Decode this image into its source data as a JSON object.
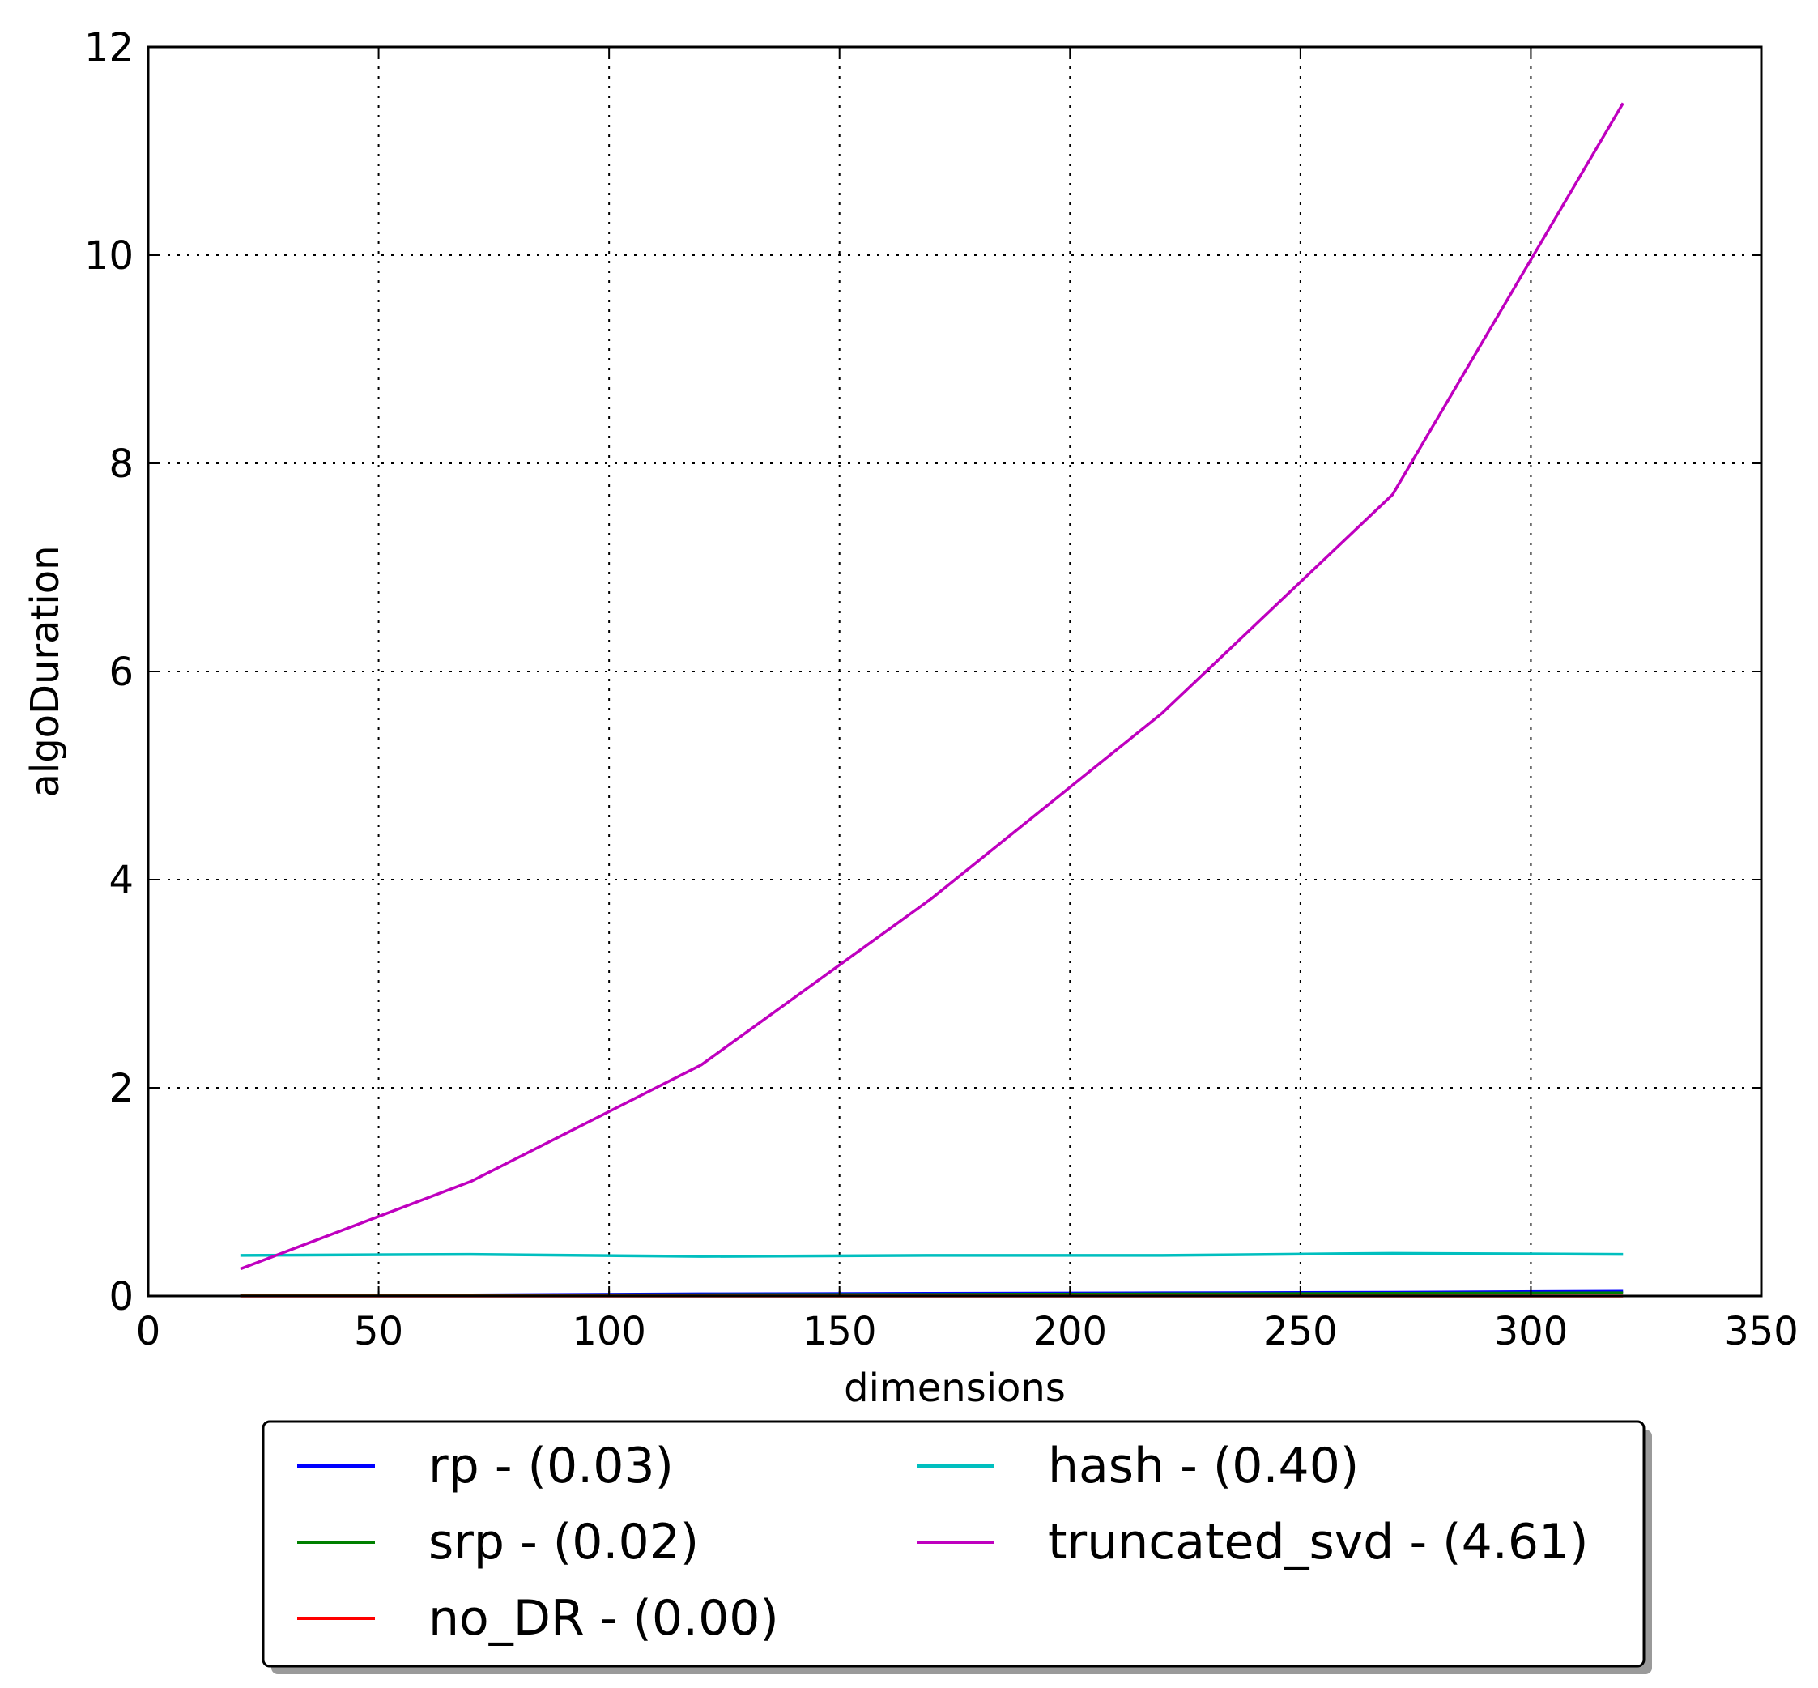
{
  "chart_data": {
    "type": "line",
    "title": "",
    "xlabel": "dimensions",
    "ylabel": "algoDuration",
    "xlim": [
      0,
      350
    ],
    "ylim": [
      0,
      12
    ],
    "xticks": [
      0,
      50,
      100,
      150,
      200,
      250,
      300,
      350
    ],
    "yticks": [
      0,
      2,
      4,
      6,
      8,
      10,
      12
    ],
    "grid": true,
    "legend_position": "bottom-center, below axes, 2 columns",
    "x": [
      20,
      70,
      120,
      170,
      220,
      270,
      320
    ],
    "series": [
      {
        "name": "rp - (0.03)",
        "color": "#0000ff",
        "values": [
          0.005,
          0.01,
          0.02,
          0.025,
          0.03,
          0.035,
          0.045
        ]
      },
      {
        "name": "srp - (0.02)",
        "color": "#008000",
        "values": [
          0.003,
          0.008,
          0.012,
          0.015,
          0.02,
          0.025,
          0.03
        ]
      },
      {
        "name": "no_DR - (0.00)",
        "color": "#ff0000",
        "values": [
          0.0,
          0.0,
          0.0,
          0.0,
          0.0,
          0.0,
          0.0
        ]
      },
      {
        "name": "hash - (0.40)",
        "color": "#00bfbf",
        "values": [
          0.39,
          0.4,
          0.38,
          0.39,
          0.39,
          0.41,
          0.4
        ]
      },
      {
        "name": "truncated_svd - (4.61)",
        "color": "#bf00bf",
        "values": [
          0.26,
          1.1,
          2.22,
          3.82,
          5.6,
          7.7,
          11.46
        ]
      }
    ]
  }
}
